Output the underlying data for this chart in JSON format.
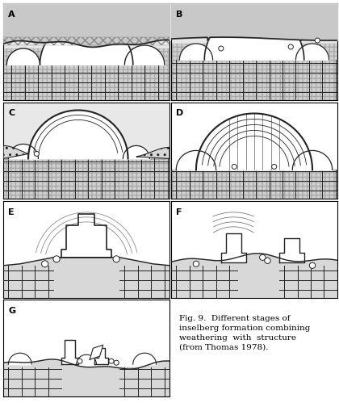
{
  "figure_width": 4.2,
  "figure_height": 5.1,
  "dpi": 100,
  "bg_color": "#f5f5f5",
  "panel_bg": "#ffffff",
  "hatch_color": "#aaaaaa",
  "line_color": "#222222",
  "caption": "Fig. 9.  Different stages of\ninselberg formation combining\nweathering  with  structure\n(from Thomas 1978).",
  "caption_fontsize": 7.5,
  "label_fontsize": 8,
  "panels": [
    "A",
    "B",
    "C",
    "D",
    "E",
    "F",
    "G"
  ],
  "grid_rows": 4,
  "grid_cols": 2
}
